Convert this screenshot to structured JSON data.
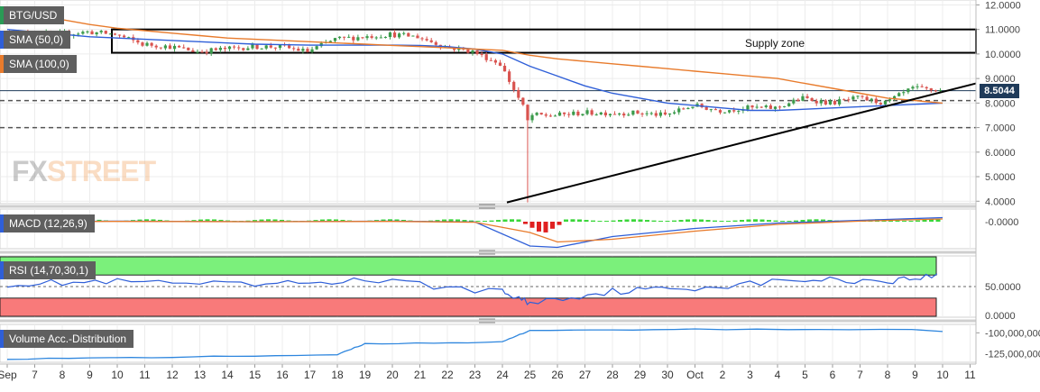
{
  "symbol": "BTG/USD",
  "price_tag": "8.5044",
  "watermark": {
    "fx": "FX",
    "street": "STREET"
  },
  "annotation": "Supply zone",
  "indicators": {
    "sma50": "SMA (50,0)",
    "sma100": "SMA (100,0)",
    "macd": "MACD (12,26,9)",
    "rsi": "RSI (14,70,30,1)",
    "volume": "Volume Acc.-Distribution"
  },
  "colors": {
    "bull": "#3a9a4a",
    "bear": "#d9534f",
    "sma50": "#2f5fd8",
    "sma100": "#e87b2c",
    "rsi_overbought": "#7bf07b",
    "rsi_oversold": "#f87a7a",
    "macd_hist_pos": "#39d639",
    "macd_hist_neg": "#e02020",
    "label_bg": "#5f5f5f"
  },
  "x_axis": {
    "month_labels": {
      "0": "Sep",
      "30": "Oct"
    },
    "ticks": [
      "Sep",
      "7",
      "8",
      "9",
      "10",
      "11",
      "12",
      "13",
      "14",
      "15",
      "16",
      "17",
      "18",
      "19",
      "20",
      "21",
      "22",
      "23",
      "24",
      "25",
      "26",
      "27",
      "28",
      "29",
      "30",
      "Oct",
      "2",
      "3",
      "4",
      "5",
      "6",
      "7",
      "8",
      "9",
      "10",
      "11"
    ]
  },
  "price_axis": {
    "ticks": [
      "12.0000",
      "11.0000",
      "10.0000",
      "9.0000",
      "8.0000",
      "7.0000",
      "6.0000",
      "5.0000",
      "4.0000"
    ]
  },
  "macd_axis": {
    "ticks": [
      "-0.0000"
    ]
  },
  "rsi_axis": {
    "ticks": [
      "50.0000",
      "0.0000"
    ]
  },
  "volume_axis": {
    "ticks": [
      "-100,000,000",
      "-125,000,000"
    ]
  },
  "chart_data": [
    {
      "type": "line",
      "title": "BTG/USD",
      "note": "Candlestick price chart (closes approximated per session)",
      "x": [
        "Sep 6",
        "Sep 7",
        "Sep 8",
        "Sep 9",
        "Sep 10",
        "Sep 11",
        "Sep 12",
        "Sep 13",
        "Sep 14",
        "Sep 15",
        "Sep 16",
        "Sep 17",
        "Sep 18",
        "Sep 19",
        "Sep 20",
        "Sep 21",
        "Sep 22",
        "Sep 23",
        "Sep 24",
        "Sep 25",
        "Sep 26",
        "Sep 27",
        "Sep 28",
        "Sep 29",
        "Sep 30",
        "Oct 1",
        "Oct 2",
        "Oct 3",
        "Oct 4",
        "Oct 5",
        "Oct 6",
        "Oct 7",
        "Oct 8",
        "Oct 9",
        "Oct 10"
      ],
      "series": [
        {
          "name": "BTG/USD",
          "values": [
            10.9,
            10.8,
            10.8,
            10.9,
            10.8,
            10.4,
            10.3,
            10.1,
            10.2,
            10.3,
            10.3,
            10.1,
            10.6,
            10.7,
            10.8,
            10.7,
            10.3,
            10.1,
            9.6,
            7.5,
            7.5,
            7.6,
            7.6,
            7.6,
            7.5,
            7.9,
            7.7,
            7.8,
            7.8,
            8.2,
            8.0,
            8.2,
            8.0,
            8.6,
            8.5
          ]
        },
        {
          "name": "SMA (50,0)",
          "values": [
            11.0,
            10.9,
            10.8,
            10.7,
            10.65,
            10.6,
            10.55,
            10.5,
            10.45,
            10.4,
            10.38,
            10.36,
            10.36,
            10.36,
            10.36,
            10.35,
            10.3,
            10.2,
            10.0,
            9.5,
            9.1,
            8.7,
            8.4,
            8.2,
            8.0,
            7.9,
            7.8,
            7.7,
            7.7,
            7.75,
            7.8,
            7.85,
            7.9,
            7.95,
            8.0
          ]
        },
        {
          "name": "SMA (100,0)",
          "values": [
            11.9,
            11.6,
            11.4,
            11.2,
            11.05,
            10.95,
            10.85,
            10.75,
            10.65,
            10.6,
            10.55,
            10.5,
            10.45,
            10.4,
            10.35,
            10.3,
            10.25,
            10.2,
            10.15,
            9.95,
            9.8,
            9.7,
            9.6,
            9.5,
            9.4,
            9.3,
            9.2,
            9.1,
            9.0,
            8.8,
            8.6,
            8.4,
            8.2,
            8.1,
            8.0
          ]
        }
      ],
      "ylim": [
        3.9,
        12.2
      ],
      "horizontal_levels": [
        8.5044,
        8.1,
        7.0
      ],
      "supply_zone": [
        10.05,
        11.0
      ],
      "trendline": {
        "from": [
          "Sep 24",
          3.95
        ],
        "to": [
          "Oct 11",
          8.8
        ]
      }
    },
    {
      "type": "line",
      "title": "MACD (12,26,9)",
      "x": [
        "Sep 6",
        "Sep 10",
        "Sep 15",
        "Sep 20",
        "Sep 23",
        "Sep 25",
        "Sep 26",
        "Sep 28",
        "Oct 1",
        "Oct 4",
        "Oct 7",
        "Oct 10"
      ],
      "series": [
        {
          "name": "MACD",
          "values": [
            0.0,
            0.02,
            0.0,
            0.02,
            -0.01,
            -0.9,
            -0.95,
            -0.55,
            -0.25,
            -0.05,
            0.05,
            0.15
          ]
        },
        {
          "name": "Signal",
          "values": [
            0.0,
            0.01,
            0.0,
            0.01,
            -0.02,
            -0.4,
            -0.75,
            -0.65,
            -0.35,
            -0.1,
            0.02,
            0.1
          ]
        }
      ]
    },
    {
      "type": "line",
      "title": "RSI (14,70,30,1)",
      "x": [
        "Sep 6",
        "Sep 10",
        "Sep 15",
        "Sep 19",
        "Sep 24",
        "Sep 25",
        "Sep 28",
        "Oct 1",
        "Oct 5",
        "Oct 8",
        "Oct 10"
      ],
      "series": [
        {
          "name": "RSI",
          "values": [
            55,
            58,
            52,
            62,
            40,
            22,
            42,
            48,
            62,
            60,
            70
          ]
        }
      ],
      "ylim": [
        0,
        100
      ],
      "bands": {
        "overbought": 70,
        "oversold": 30
      }
    },
    {
      "type": "line",
      "title": "Volume Acc.-Distribution",
      "x": [
        "Sep 6",
        "Sep 12",
        "Sep 18",
        "Sep 19",
        "Sep 24",
        "Sep 25",
        "Oct 1",
        "Oct 10"
      ],
      "series": [
        {
          "name": "Volume Acc.-Distribution",
          "values": [
            -131000000,
            -129000000,
            -126000000,
            -113000000,
            -111000000,
            -97000000,
            -96000000,
            -96000000
          ]
        }
      ],
      "ylim": [
        -135000000,
        -90000000
      ]
    }
  ]
}
